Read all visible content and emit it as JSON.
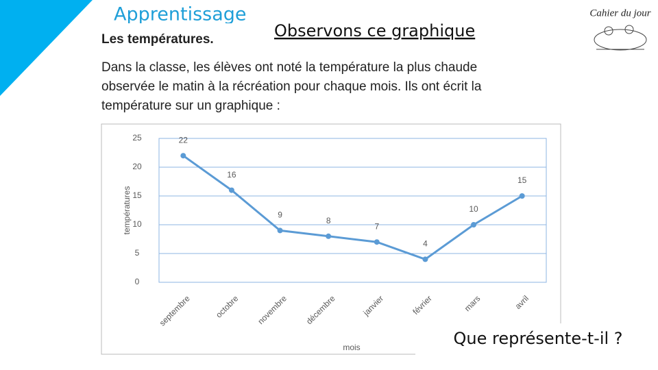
{
  "header": {
    "title": "Apprentissage",
    "subtitle": "Les températures.",
    "heading": "Observons ce graphique",
    "logo": "Cahier du jour"
  },
  "intro": [
    "Dans la classe, les élèves ont noté la température la plus chaude",
    "observée le matin à la récréation pour chaque mois. Ils ont écrit la",
    "température sur un graphique :"
  ],
  "question": "Que représente-t-il ?",
  "chart_data": {
    "type": "line",
    "ylabel": "températures",
    "xlabel": "mois",
    "categories": [
      "septembre",
      "octobre",
      "novembre",
      "décembre",
      "janvier",
      "février",
      "mars",
      "avril"
    ],
    "values": [
      22,
      16,
      9,
      8,
      7,
      4,
      10,
      15
    ],
    "color": "#5b9bd5",
    "ylim": [
      0,
      25
    ],
    "yticks": [
      0,
      5,
      10,
      15,
      20,
      25
    ],
    "grid": true
  }
}
